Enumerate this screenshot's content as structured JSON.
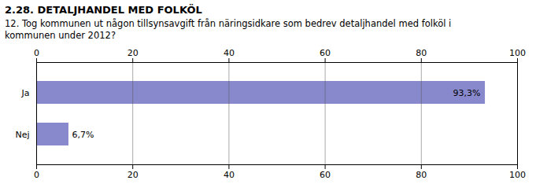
{
  "chart_data": {
    "type": "bar",
    "orientation": "horizontal",
    "title": "2.28. DETALJHANDEL MED FOLKÖL",
    "subtitle": "12. Tog kommunen ut någon tillsynsavgift från näringsidkare som bedrev detaljhandel med folköl i\nkommunen under 2012?",
    "categories": [
      "Nej",
      "Ja"
    ],
    "values": [
      6.7,
      93.3
    ],
    "value_labels": [
      "6,7%",
      "93,3%"
    ],
    "data_labels": true,
    "color": "#8888cc",
    "xlim": [
      0,
      100
    ],
    "xticks": [
      0,
      20,
      40,
      60,
      80,
      100
    ],
    "grid": true
  }
}
